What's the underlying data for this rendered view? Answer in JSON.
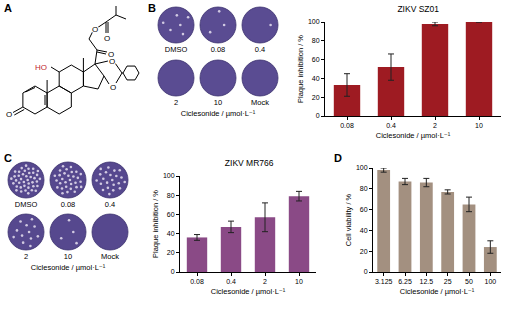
{
  "panels": [
    "A",
    "B",
    "C",
    "D"
  ],
  "structure": {
    "atom_labels": [
      "O",
      "HO",
      "O",
      "O",
      "O",
      "O",
      "O"
    ]
  },
  "plaques": [
    {
      "wells": [
        "DMSO",
        "0.08",
        "0.4",
        "2",
        "10",
        "Mock"
      ],
      "caption": "Ciclesonide / µmol·L⁻¹"
    },
    {
      "wells": [
        "DMSO",
        "0.08",
        "0.4",
        "2",
        "10",
        "Mock"
      ],
      "caption": "Ciclesonide / µmol·L⁻¹"
    }
  ],
  "chart_data": [
    {
      "type": "bar",
      "title": "ZIKV SZ01",
      "x_label": "Ciclesonide / µmol·L⁻¹",
      "y_label": "Plaque inhibition / %",
      "categories": [
        "0.08",
        "0.4",
        "2",
        "10"
      ],
      "values": [
        33,
        52,
        98,
        100
      ],
      "errors": [
        12,
        14,
        2,
        0
      ],
      "color": "#9e1b22",
      "ylim": [
        0,
        100
      ],
      "yticks": [
        0,
        20,
        40,
        60,
        80,
        100
      ],
      "grid": false
    },
    {
      "type": "bar",
      "title": "ZIKV MR766",
      "x_label": "Ciclesonide / µmol·L⁻¹",
      "y_label": "Plaque inhibition / %",
      "categories": [
        "0.08",
        "0.4",
        "2",
        "10"
      ],
      "values": [
        36,
        47,
        57,
        79
      ],
      "errors": [
        3,
        6,
        15,
        5
      ],
      "color": "#8a4a86",
      "ylim": [
        0,
        100
      ],
      "yticks": [
        0,
        20,
        40,
        60,
        80,
        100
      ],
      "grid": false
    },
    {
      "type": "bar",
      "x_label": "Ciclesonide / µmol·L⁻¹",
      "y_label": "Cell viability / %",
      "categories": [
        "3.125",
        "6.25",
        "12.5",
        "25",
        "50",
        "100"
      ],
      "values": [
        98,
        87,
        86,
        77,
        65,
        24
      ],
      "errors": [
        2,
        3,
        4,
        2,
        7,
        6
      ],
      "color": "#a39080",
      "ylim": [
        0,
        100
      ],
      "yticks": [
        0,
        20,
        40,
        60,
        80,
        100
      ],
      "grid": false
    }
  ]
}
